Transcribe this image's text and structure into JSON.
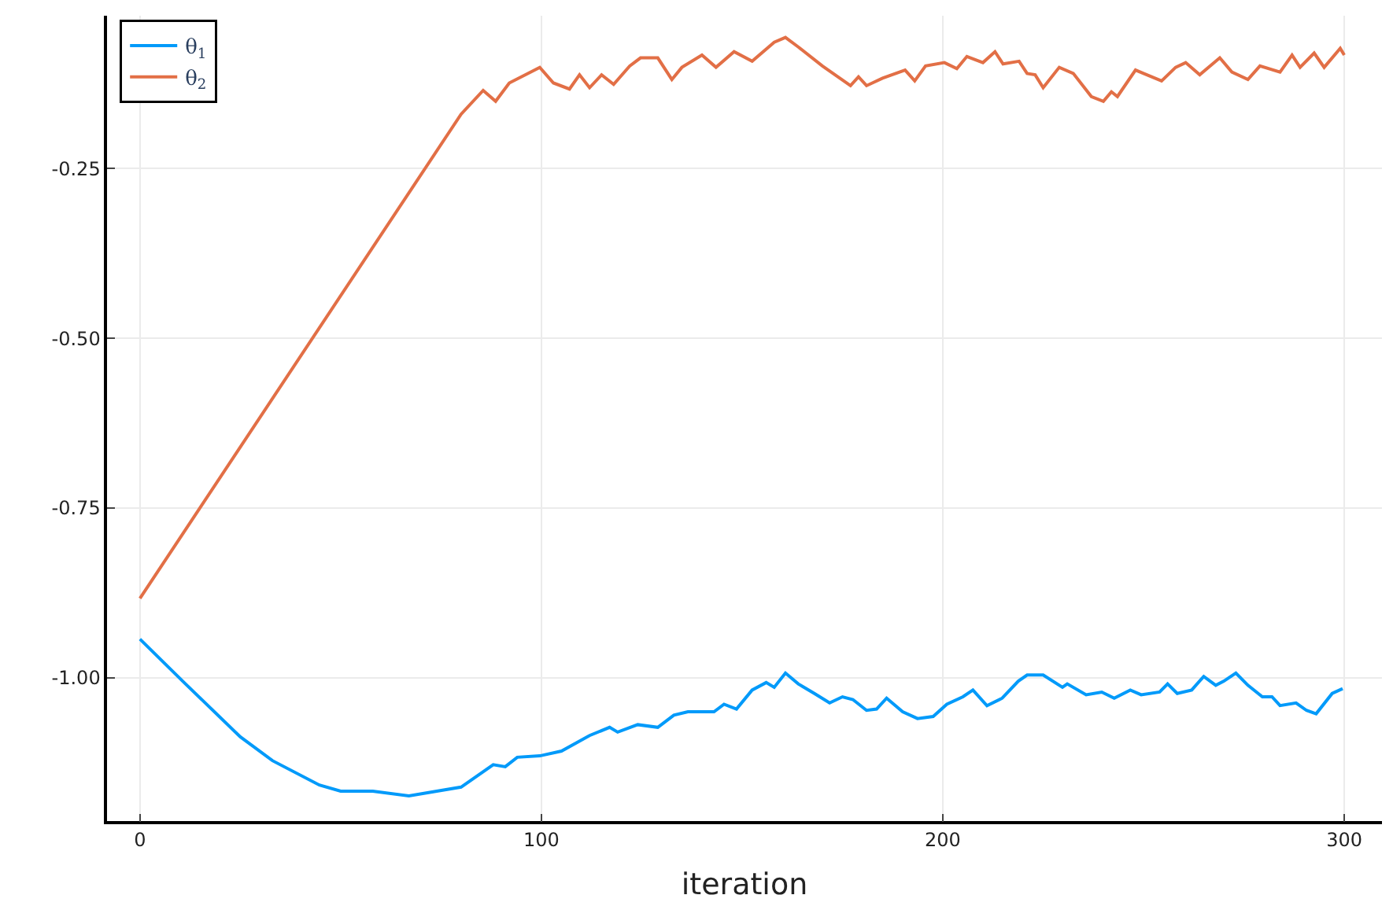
{
  "chart_data": {
    "type": "line",
    "xlabel": "iteration",
    "xlim": [
      -8.2,
      309.4
    ],
    "ylim": [
      -1.211,
      -0.025
    ],
    "xticks": [
      0,
      100,
      200,
      300
    ],
    "yticks": [
      {
        "value": -0.25,
        "label": "-0.25"
      },
      {
        "value": -0.5,
        "label": "-0.50"
      },
      {
        "value": -0.75,
        "label": "-0.75"
      },
      {
        "value": -1.0,
        "label": "-1.00"
      }
    ],
    "grid": true,
    "legend": "top left",
    "marker": "none",
    "line_style": "solid",
    "series": [
      {
        "name": "θ$_{1}$",
        "color": "#009afa",
        "x": [
          0,
          11,
          25,
          33,
          44.7,
          50,
          58,
          67,
          80,
          88,
          91,
          94,
          99.6,
          105,
          112,
          117,
          119,
          124,
          129,
          133,
          136.5,
          143,
          145.5,
          148.6,
          152.5,
          156,
          158,
          160.8,
          164,
          168,
          171.8,
          175,
          177.6,
          181,
          183.5,
          186,
          190,
          193.7,
          197.6,
          201,
          205,
          207.5,
          211,
          214.8,
          218.8,
          221,
          225,
          229.8,
          231,
          235.7,
          239.6,
          242.7,
          246.7,
          249.4,
          254,
          256,
          258.4,
          262,
          265,
          268,
          270,
          273,
          276,
          279.6,
          282,
          284,
          288,
          290.6,
          293,
          297,
          299.6
        ],
        "values": [
          -0.943,
          -1.007,
          -1.087,
          -1.122,
          -1.158,
          -1.167,
          -1.167,
          -1.174,
          -1.161,
          -1.128,
          -1.131,
          -1.117,
          -1.115,
          -1.108,
          -1.085,
          -1.073,
          -1.08,
          -1.069,
          -1.073,
          -1.055,
          -1.05,
          -1.05,
          -1.039,
          -1.046,
          -1.018,
          -1.007,
          -1.014,
          -0.993,
          -1.009,
          -1.023,
          -1.037,
          -1.028,
          -1.032,
          -1.048,
          -1.046,
          -1.03,
          -1.05,
          -1.06,
          -1.057,
          -1.039,
          -1.028,
          -1.018,
          -1.041,
          -1.03,
          -1.005,
          -0.996,
          -0.996,
          -1.014,
          -1.009,
          -1.025,
          -1.021,
          -1.03,
          -1.018,
          -1.025,
          -1.021,
          -1.009,
          -1.023,
          -1.018,
          -0.998,
          -1.011,
          -1.005,
          -0.993,
          -1.011,
          -1.028,
          -1.028,
          -1.041,
          -1.037,
          -1.048,
          -1.053,
          -1.023,
          -1.016
        ]
      },
      {
        "name": "θ$_{2}$",
        "color": "#e26f46",
        "x": [
          0,
          80,
          85.5,
          88.6,
          92,
          99.6,
          103,
          107,
          109.5,
          112,
          115,
          118,
          122,
          124.7,
          129,
          132.5,
          135,
          140,
          143.5,
          148,
          152.5,
          158,
          160.8,
          164,
          170,
          177,
          179,
          181,
          185,
          190.6,
          193,
          195.7,
          200.4,
          203.5,
          206,
          210,
          213,
          215,
          219,
          221,
          223,
          225,
          229,
          232.5,
          237,
          240,
          242,
          243.5,
          248,
          250,
          254.5,
          258,
          260.5,
          264,
          269,
          272,
          276,
          279,
          284,
          287,
          289,
          292.5,
          295,
          299,
          300
        ],
        "values": [
          -0.883,
          -0.17,
          -0.135,
          -0.151,
          -0.124,
          -0.101,
          -0.124,
          -0.133,
          -0.112,
          -0.131,
          -0.112,
          -0.126,
          -0.099,
          -0.087,
          -0.087,
          -0.119,
          -0.101,
          -0.083,
          -0.101,
          -0.078,
          -0.092,
          -0.064,
          -0.057,
          -0.071,
          -0.099,
          -0.128,
          -0.115,
          -0.128,
          -0.117,
          -0.105,
          -0.121,
          -0.099,
          -0.094,
          -0.103,
          -0.085,
          -0.094,
          -0.078,
          -0.096,
          -0.092,
          -0.11,
          -0.112,
          -0.131,
          -0.101,
          -0.11,
          -0.144,
          -0.151,
          -0.137,
          -0.144,
          -0.105,
          -0.11,
          -0.121,
          -0.101,
          -0.094,
          -0.112,
          -0.087,
          -0.108,
          -0.119,
          -0.099,
          -0.108,
          -0.083,
          -0.101,
          -0.08,
          -0.101,
          -0.073,
          -0.083
        ]
      }
    ]
  }
}
